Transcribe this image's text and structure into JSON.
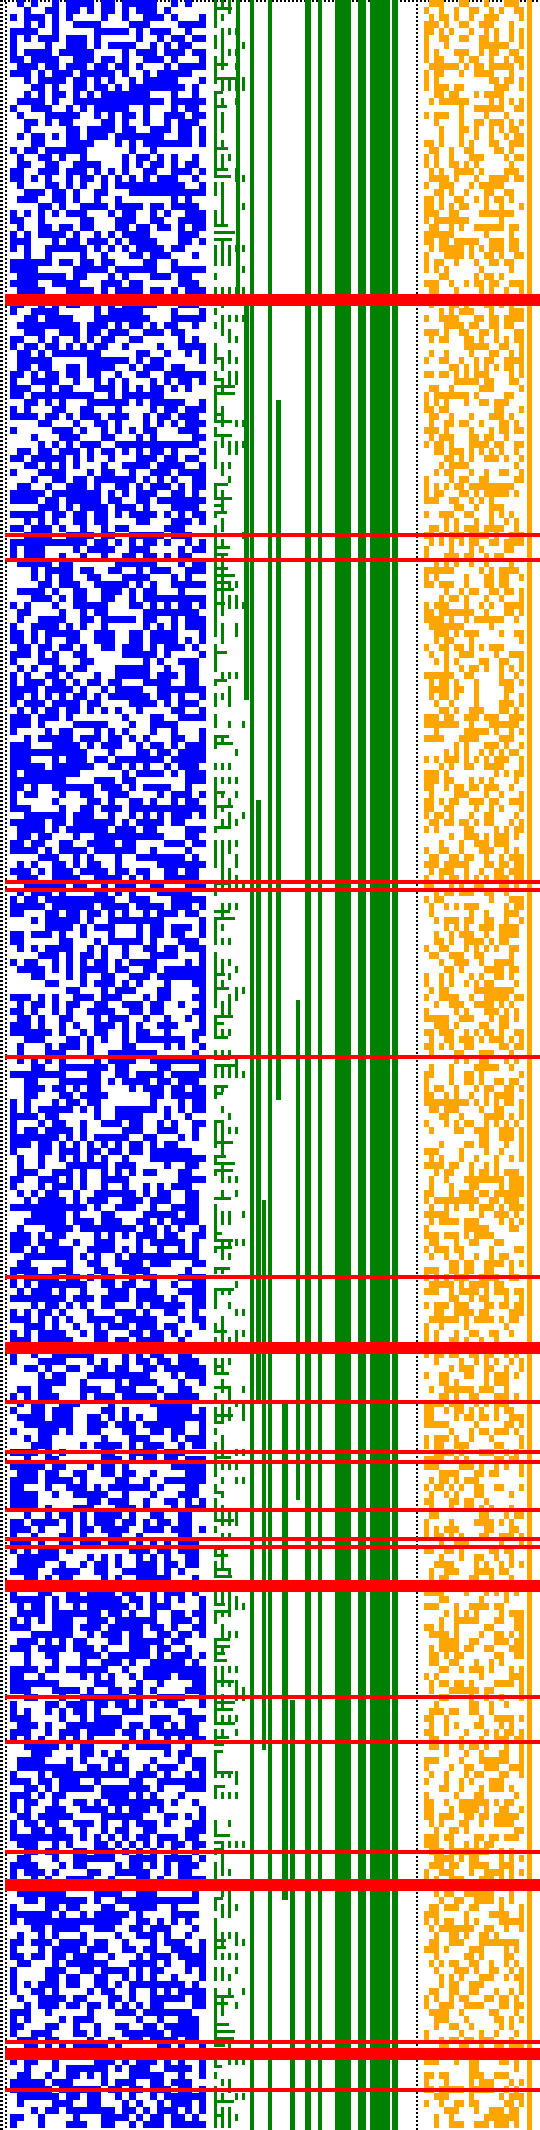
{
  "figure": {
    "kind": "binary-matrix-visualization",
    "bands": [
      {
        "name": "left-random-band",
        "color": "#0000ff",
        "fill_ratio": 0.56
      },
      {
        "name": "tree-branch-band",
        "color": "#008000",
        "fill_ratio": 0.35
      },
      {
        "name": "right-random-band",
        "color": "#ffa500",
        "fill_ratio": 0.45
      }
    ],
    "separator_color": "#000000",
    "highlight_color": "#ff0000",
    "background_color": "#ffffff",
    "green_columns_pattern": "solid-vertical-stripes",
    "highlight_rows": [
      {
        "thickness": "thick"
      },
      {
        "thickness": "thin"
      },
      {
        "thickness": "thin"
      },
      {
        "thickness": "thin"
      },
      {
        "thickness": "thin"
      },
      {
        "thickness": "thin"
      },
      {
        "thickness": "thin"
      },
      {
        "thickness": "thick"
      },
      {
        "thickness": "thin"
      },
      {
        "thickness": "thin"
      },
      {
        "thickness": "thin"
      },
      {
        "thickness": "thin"
      },
      {
        "thickness": "thin"
      },
      {
        "thickness": "thin"
      },
      {
        "thickness": "thick"
      },
      {
        "thickness": "thin"
      },
      {
        "thickness": "thin"
      },
      {
        "thickness": "thin"
      },
      {
        "thickness": "thick"
      },
      {
        "thickness": "thin"
      },
      {
        "thickness": "thick"
      },
      {
        "thickness": "thin"
      }
    ]
  }
}
